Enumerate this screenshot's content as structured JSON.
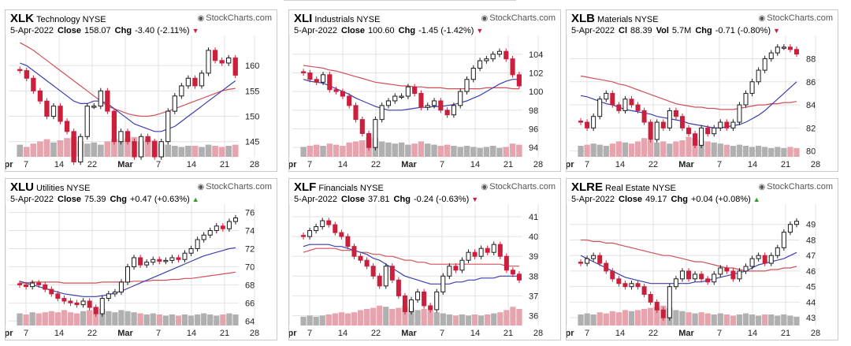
{
  "brand": "StockCharts.com",
  "date": "5-Apr-2022",
  "labels": {
    "close": "Close",
    "chg": "Chg",
    "cl": "Cl",
    "vol": "Vol"
  },
  "colors": {
    "up": "#1a1a1a",
    "down": "#cc1f3c",
    "ma50": "#3b3fae",
    "ma200": "#d05058",
    "vol_up": "#b0b0b0",
    "vol_down": "#e6a5ae",
    "grid": "#e2e2e2",
    "pos": "#2e9a2e",
    "neg": "#cc1f3c"
  },
  "panels": [
    {
      "symbol": "XLK",
      "name": "Technology",
      "exchange": "NYSE",
      "close_label": "Close",
      "close": "158.07",
      "chg": "-3.40 (-2.11%)",
      "direction": "down",
      "vol": ""
    },
    {
      "symbol": "XLI",
      "name": "Industrials",
      "exchange": "NYSE",
      "close_label": "Close",
      "close": "100.60",
      "chg": "-1.45 (-1.42%)",
      "direction": "down",
      "vol": ""
    },
    {
      "symbol": "XLB",
      "name": "Materials",
      "exchange": "NYSE",
      "close_label": "Cl",
      "close": "88.39",
      "chg": "-0.71 (-0.80%)",
      "direction": "down",
      "vol": "5.7M"
    },
    {
      "symbol": "XLU",
      "name": "Utilities",
      "exchange": "NYSE",
      "close_label": "Close",
      "close": "75.39",
      "chg": "+0.47 (+0.63%)",
      "direction": "up",
      "vol": ""
    },
    {
      "symbol": "XLF",
      "name": "Financials",
      "exchange": "NYSE",
      "close_label": "Close",
      "close": "37.81",
      "chg": "-0.24 (-0.63%)",
      "direction": "down",
      "vol": ""
    },
    {
      "symbol": "XLRE",
      "name": "Real Estate",
      "exchange": "NYSE",
      "close_label": "Close",
      "close": "49.17",
      "chg": "+0.04 (+0.08%)",
      "direction": "up",
      "vol": ""
    }
  ],
  "chart_data": [
    {
      "type": "candlestick",
      "title": "XLK Technology",
      "x_ticks": [
        "7",
        "14",
        "22",
        "Mar",
        "7",
        "14",
        "21",
        "28",
        "Apr"
      ],
      "y_ticks": [
        145,
        150,
        155,
        160
      ],
      "ylim": [
        142,
        165
      ],
      "close": [
        159.0,
        157.5,
        155.0,
        153.0,
        150.0,
        152.0,
        149.0,
        147.0,
        141.0,
        146.0,
        152.0,
        152.0,
        155.0,
        151.0,
        145.0,
        147.0,
        145.0,
        142.0,
        146.0,
        145.0,
        142.0,
        145.0,
        151.0,
        154.0,
        156.0,
        157.5,
        156.0,
        158.5,
        163.0,
        161.0,
        160.5,
        161.5,
        158.1
      ],
      "ma50": [
        164.5,
        163.8,
        163.0,
        162.0,
        161.0,
        160.0,
        159.0,
        158.0,
        157.0,
        156.0,
        155.0,
        154.0,
        153.0,
        152.0,
        151.5,
        151.0,
        150.5,
        150.2,
        150.0,
        150.0,
        150.2,
        150.6,
        151.0,
        151.5,
        152.0,
        152.5,
        153.0,
        153.5,
        154.0,
        154.5,
        155.0,
        155.3,
        155.5
      ],
      "ma20": [
        160.5,
        160.0,
        159.0,
        158.0,
        157.0,
        156.0,
        155.0,
        154.0,
        153.0,
        152.5,
        152.5,
        153.0,
        153.0,
        152.5,
        151.5,
        150.5,
        149.5,
        148.5,
        148.0,
        147.5,
        147.0,
        147.0,
        147.5,
        148.0,
        149.0,
        150.0,
        151.0,
        152.0,
        153.0,
        154.0,
        155.0,
        156.0,
        157.0
      ],
      "volume": [
        0.55,
        0.45,
        0.6,
        0.7,
        0.8,
        0.65,
        0.75,
        0.85,
        0.9,
        0.7,
        0.6,
        0.65,
        0.55,
        0.7,
        0.8,
        0.75,
        0.85,
        0.9,
        0.7,
        0.8,
        0.75,
        0.6,
        0.55,
        0.5,
        0.45,
        0.5,
        0.5,
        0.45,
        0.55,
        0.5,
        0.45,
        0.5,
        0.55
      ]
    },
    {
      "type": "candlestick",
      "title": "XLI Industrials",
      "x_ticks": [
        "7",
        "14",
        "22",
        "Mar",
        "7",
        "14",
        "21",
        "28",
        "Apr"
      ],
      "y_ticks": [
        94,
        96,
        98,
        100,
        102,
        104
      ],
      "ylim": [
        93,
        105.5
      ],
      "close": [
        102.0,
        101.3,
        101.0,
        101.8,
        100.2,
        100.0,
        99.5,
        98.5,
        97.0,
        95.5,
        94.0,
        97.0,
        98.5,
        99.0,
        99.5,
        99.5,
        100.5,
        99.8,
        98.3,
        98.5,
        99.0,
        98.0,
        97.5,
        98.5,
        100.0,
        101.3,
        102.5,
        103.3,
        103.5,
        104.0,
        104.3,
        103.5,
        101.8,
        100.6
      ],
      "ma50": [
        102.8,
        102.7,
        102.6,
        102.5,
        102.3,
        102.2,
        102.0,
        101.8,
        101.6,
        101.4,
        101.2,
        101.0,
        100.9,
        100.8,
        100.7,
        100.6,
        100.6,
        100.5,
        100.5,
        100.4,
        100.4,
        100.4,
        100.3,
        100.3,
        100.3,
        100.3,
        100.3,
        100.3,
        100.4,
        100.4,
        100.4,
        100.4,
        100.3,
        100.3
      ],
      "ma20": [
        101.3,
        101.1,
        101.0,
        100.9,
        100.6,
        100.3,
        100.0,
        99.7,
        99.3,
        99.0,
        98.7,
        98.4,
        98.2,
        98.0,
        98.0,
        98.0,
        98.1,
        98.2,
        98.3,
        98.3,
        98.4,
        98.4,
        98.5,
        98.6,
        98.8,
        99.0,
        99.3,
        99.6,
        100.0,
        100.4,
        100.8,
        101.1,
        101.3,
        101.3
      ],
      "volume": [
        0.45,
        0.5,
        0.55,
        0.5,
        0.6,
        0.55,
        0.5,
        0.65,
        0.7,
        0.75,
        0.9,
        0.85,
        0.7,
        0.65,
        0.6,
        0.65,
        0.55,
        0.6,
        0.7,
        0.6,
        0.55,
        0.5,
        0.55,
        0.5,
        0.45,
        0.5,
        0.45,
        0.4,
        0.45,
        0.5,
        0.4,
        0.45,
        0.6,
        0.55
      ]
    },
    {
      "type": "candlestick",
      "title": "XLB Materials",
      "x_ticks": [
        "7",
        "14",
        "22",
        "Mar",
        "7",
        "14",
        "21",
        "28",
        "Apr"
      ],
      "y_ticks": [
        80,
        82,
        84,
        86,
        88
      ],
      "ylim": [
        79.5,
        89.6
      ],
      "close": [
        82.5,
        82.0,
        83.0,
        84.5,
        85.0,
        84.0,
        83.5,
        84.5,
        84.0,
        83.5,
        82.5,
        81.0,
        82.5,
        82.0,
        83.5,
        83.0,
        82.0,
        81.5,
        80.5,
        82.0,
        81.5,
        82.0,
        82.5,
        82.0,
        82.5,
        84.0,
        85.0,
        86.0,
        87.0,
        88.0,
        88.5,
        89.0,
        89.0,
        88.8,
        88.4
      ],
      "ma50": [
        86.5,
        86.4,
        86.3,
        86.2,
        86.1,
        86.0,
        85.8,
        85.7,
        85.5,
        85.3,
        85.1,
        84.9,
        84.7,
        84.5,
        84.3,
        84.1,
        84.0,
        83.9,
        83.8,
        83.8,
        83.7,
        83.7,
        83.6,
        83.6,
        83.6,
        83.7,
        83.8,
        83.9,
        84.0,
        84.0,
        84.1,
        84.1,
        84.2,
        84.2,
        84.3
      ],
      "ma20": [
        84.8,
        84.7,
        84.5,
        84.3,
        84.1,
        84.0,
        83.8,
        83.6,
        83.5,
        83.4,
        83.3,
        83.2,
        83.0,
        82.9,
        82.8,
        82.7,
        82.6,
        82.4,
        82.3,
        82.2,
        82.1,
        82.0,
        82.0,
        82.1,
        82.2,
        82.3,
        82.5,
        82.8,
        83.1,
        83.5,
        84.0,
        84.5,
        85.0,
        85.5,
        86.0
      ],
      "volume": [
        0.5,
        0.55,
        0.6,
        0.55,
        0.5,
        0.6,
        0.7,
        0.65,
        0.6,
        0.7,
        0.85,
        0.75,
        0.65,
        0.7,
        0.6,
        0.7,
        0.75,
        0.9,
        0.85,
        0.75,
        0.7,
        0.65,
        0.6,
        0.55,
        0.5,
        0.55,
        0.5,
        0.45,
        0.5,
        0.45,
        0.4,
        0.45,
        0.4,
        0.45,
        0.4
      ]
    },
    {
      "type": "candlestick",
      "title": "XLU Utilities",
      "x_ticks": [
        "7",
        "14",
        "22",
        "Mar",
        "7",
        "14",
        "21",
        "28",
        "Apr"
      ],
      "y_ticks": [
        64,
        66,
        68,
        70,
        72,
        74,
        76
      ],
      "ylim": [
        63.5,
        76.4
      ],
      "close": [
        68.0,
        67.8,
        68.2,
        68.0,
        67.5,
        67.0,
        66.5,
        66.2,
        66.0,
        65.8,
        66.2,
        65.5,
        64.8,
        66.5,
        67.0,
        67.2,
        68.3,
        70.0,
        71.0,
        70.2,
        70.5,
        70.8,
        70.6,
        70.7,
        71.0,
        70.8,
        71.5,
        72.0,
        73.0,
        73.5,
        74.0,
        74.5,
        74.2,
        75.0,
        75.4
      ],
      "ma50": [
        68.2,
        68.2,
        68.3,
        68.3,
        68.3,
        68.3,
        68.3,
        68.2,
        68.2,
        68.2,
        68.2,
        68.2,
        68.2,
        68.3,
        68.3,
        68.3,
        68.3,
        68.3,
        68.4,
        68.4,
        68.4,
        68.5,
        68.5,
        68.5,
        68.6,
        68.6,
        68.7,
        68.7,
        68.8,
        68.9,
        69.0,
        69.1,
        69.2,
        69.3,
        69.4
      ],
      "ma20": [
        68.4,
        68.2,
        68.0,
        67.8,
        67.6,
        67.4,
        67.2,
        67.0,
        66.9,
        66.8,
        66.7,
        66.7,
        66.7,
        66.8,
        66.9,
        67.1,
        67.3,
        67.6,
        67.9,
        68.2,
        68.5,
        68.8,
        69.1,
        69.4,
        69.7,
        70.0,
        70.3,
        70.6,
        70.9,
        71.2,
        71.4,
        71.6,
        71.8,
        72.0,
        72.1
      ],
      "volume": [
        0.55,
        0.5,
        0.6,
        0.55,
        0.6,
        0.65,
        0.6,
        0.7,
        0.6,
        0.55,
        0.65,
        0.7,
        0.85,
        0.75,
        0.65,
        0.6,
        0.7,
        0.65,
        0.6,
        0.55,
        0.5,
        0.55,
        0.5,
        0.45,
        0.5,
        0.45,
        0.5,
        0.45,
        0.5,
        0.55,
        0.5,
        0.45,
        0.5,
        0.55,
        0.5
      ]
    },
    {
      "type": "candlestick",
      "title": "XLF Financials",
      "x_ticks": [
        "7",
        "14",
        "22",
        "Mar",
        "7",
        "14",
        "21",
        "28",
        "Apr"
      ],
      "y_ticks": [
        36,
        37,
        38,
        39,
        40,
        41
      ],
      "ylim": [
        35.5,
        41.4
      ],
      "close": [
        40.0,
        40.3,
        40.5,
        40.8,
        40.6,
        40.2,
        40.0,
        39.5,
        39.0,
        38.8,
        38.5,
        38.0,
        37.5,
        38.5,
        37.8,
        37.0,
        36.2,
        36.8,
        37.2,
        36.5,
        36.3,
        37.2,
        38.0,
        38.5,
        38.3,
        38.8,
        39.2,
        39.0,
        39.4,
        39.2,
        39.6,
        39.0,
        38.3,
        38.1,
        37.8
      ],
      "ma50": [
        39.2,
        39.3,
        39.4,
        39.4,
        39.4,
        39.4,
        39.3,
        39.3,
        39.3,
        39.2,
        39.2,
        39.1,
        39.1,
        39.0,
        39.0,
        38.9,
        38.8,
        38.8,
        38.7,
        38.7,
        38.6,
        38.6,
        38.6,
        38.6,
        38.6,
        38.6,
        38.6,
        38.6,
        38.6,
        38.6,
        38.6,
        38.6,
        38.5,
        38.5,
        38.5
      ],
      "ma20": [
        39.5,
        39.6,
        39.6,
        39.6,
        39.6,
        39.5,
        39.5,
        39.4,
        39.3,
        39.2,
        39.1,
        38.9,
        38.8,
        38.6,
        38.4,
        38.2,
        38.0,
        37.9,
        37.8,
        37.7,
        37.6,
        37.6,
        37.6,
        37.6,
        37.7,
        37.7,
        37.8,
        37.8,
        37.9,
        37.9,
        37.9,
        38.0,
        38.0,
        38.0,
        38.0
      ],
      "volume": [
        0.4,
        0.45,
        0.4,
        0.45,
        0.5,
        0.55,
        0.6,
        0.55,
        0.6,
        0.7,
        0.75,
        0.8,
        0.9,
        0.85,
        0.75,
        0.8,
        0.9,
        0.8,
        0.7,
        0.75,
        0.7,
        0.6,
        0.55,
        0.5,
        0.45,
        0.5,
        0.45,
        0.5,
        0.45,
        0.5,
        0.55,
        0.6,
        0.7,
        0.85,
        0.75
      ]
    },
    {
      "type": "candlestick",
      "title": "XLRE Real Estate",
      "x_ticks": [
        "7",
        "14",
        "22",
        "Mar",
        "7",
        "14",
        "21",
        "28",
        "Apr"
      ],
      "y_ticks": [
        43,
        44,
        45,
        46,
        47,
        48,
        49
      ],
      "ylim": [
        42.5,
        50.0
      ],
      "close": [
        46.5,
        46.8,
        47.0,
        46.5,
        46.0,
        45.5,
        45.2,
        45.0,
        45.2,
        45.0,
        44.5,
        44.0,
        43.5,
        43.0,
        45.0,
        45.5,
        46.0,
        45.5,
        45.8,
        45.5,
        45.3,
        45.8,
        46.2,
        46.0,
        45.5,
        46.0,
        46.3,
        46.8,
        47.0,
        46.5,
        47.0,
        47.5,
        48.5,
        49.0,
        49.2
      ],
      "ma50": [
        48.0,
        48.0,
        47.9,
        47.9,
        47.8,
        47.8,
        47.7,
        47.6,
        47.5,
        47.4,
        47.3,
        47.2,
        47.1,
        47.0,
        47.0,
        46.9,
        46.8,
        46.7,
        46.6,
        46.6,
        46.5,
        46.4,
        46.3,
        46.2,
        46.2,
        46.1,
        46.0,
        46.0,
        46.0,
        46.0,
        46.1,
        46.1,
        46.2,
        46.2,
        46.3
      ],
      "ma20": [
        47.0,
        46.8,
        46.6,
        46.4,
        46.2,
        46.0,
        45.8,
        45.6,
        45.5,
        45.4,
        45.3,
        45.2,
        45.2,
        45.2,
        45.2,
        45.2,
        45.2,
        45.2,
        45.3,
        45.3,
        45.4,
        45.5,
        45.6,
        45.7,
        45.8,
        45.9,
        46.0,
        46.2,
        46.4,
        46.5,
        46.6,
        46.7,
        46.8,
        47.0,
        47.2
      ],
      "volume": [
        0.5,
        0.55,
        0.5,
        0.6,
        0.55,
        0.65,
        0.6,
        0.7,
        0.65,
        0.7,
        0.75,
        0.8,
        0.85,
        0.9,
        0.8,
        0.7,
        0.65,
        0.6,
        0.55,
        0.6,
        0.55,
        0.5,
        0.55,
        0.5,
        0.45,
        0.5,
        0.55,
        0.5,
        0.45,
        0.5,
        0.5,
        0.45,
        0.5,
        0.45,
        0.4
      ]
    }
  ]
}
